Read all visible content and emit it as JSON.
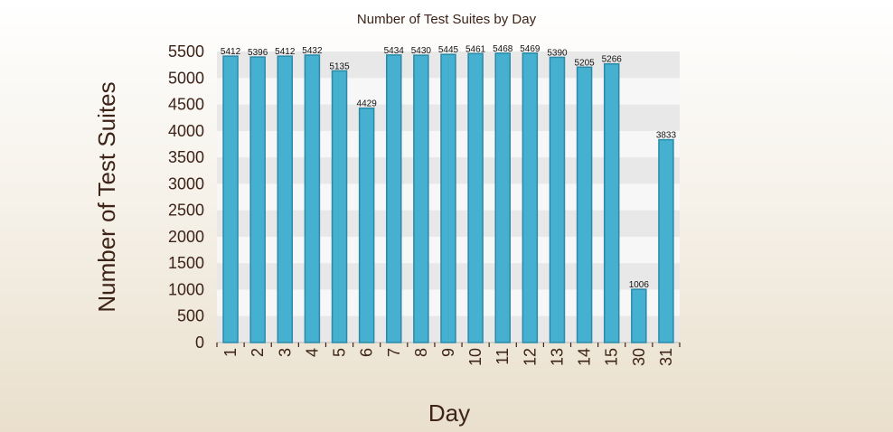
{
  "chart_data": {
    "type": "bar",
    "title": "Number of Test Suites by Day",
    "xlabel": "Day",
    "ylabel": "Number of Test Suites",
    "categories": [
      "1",
      "2",
      "3",
      "4",
      "5",
      "6",
      "7",
      "8",
      "9",
      "10",
      "11",
      "12",
      "13",
      "14",
      "15",
      "30",
      "31"
    ],
    "values": [
      5412,
      5396,
      5412,
      5432,
      5135,
      4429,
      5434,
      5430,
      5445,
      5461,
      5468,
      5469,
      5390,
      5205,
      5266,
      1006,
      3833
    ],
    "ylim": [
      0,
      5500
    ],
    "yticks": [
      0,
      500,
      1000,
      1500,
      2000,
      2500,
      3000,
      3500,
      4000,
      4500,
      5000,
      5500
    ],
    "grid": "alternating horizontal bands",
    "legend": "none",
    "colors": {
      "bar": "#45b0cf",
      "bar_edge": "#2a8aa8",
      "band_dark": "#e8e8e8",
      "band_light": "#f7f7f7",
      "text": "#3d2318"
    }
  }
}
